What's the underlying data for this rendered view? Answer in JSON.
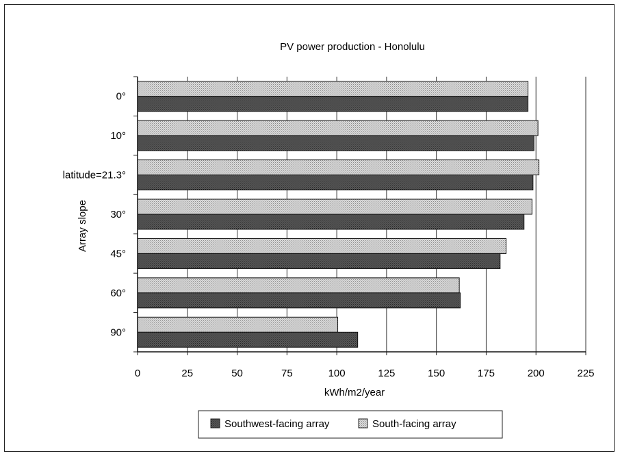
{
  "chart_data": {
    "type": "bar",
    "orientation": "horizontal",
    "title": "PV power production - Honolulu",
    "xlabel": "kWh/m2/year",
    "ylabel": "Array slope",
    "xlim": [
      0,
      225
    ],
    "xticks": [
      "0",
      "25",
      "50",
      "75",
      "100",
      "125",
      "150",
      "175",
      "200",
      "225"
    ],
    "categories": [
      "0°",
      "10°",
      "latitude=21.3°",
      "30°",
      "45°",
      "60°",
      "90°"
    ],
    "series": [
      {
        "name": "South-facing array",
        "values": [
          196,
          201,
          201.5,
          198,
          185,
          161.5,
          100.5
        ]
      },
      {
        "name": "Southwest-facing array",
        "values": [
          196,
          199,
          198.5,
          194,
          182,
          162,
          110.5
        ]
      }
    ],
    "legend_order": [
      "Southwest-facing array",
      "South-facing array"
    ],
    "grid": "vertical",
    "legend_position": "bottom",
    "colors": {
      "south": "#d2d2d2",
      "southwest": "#595959"
    }
  }
}
